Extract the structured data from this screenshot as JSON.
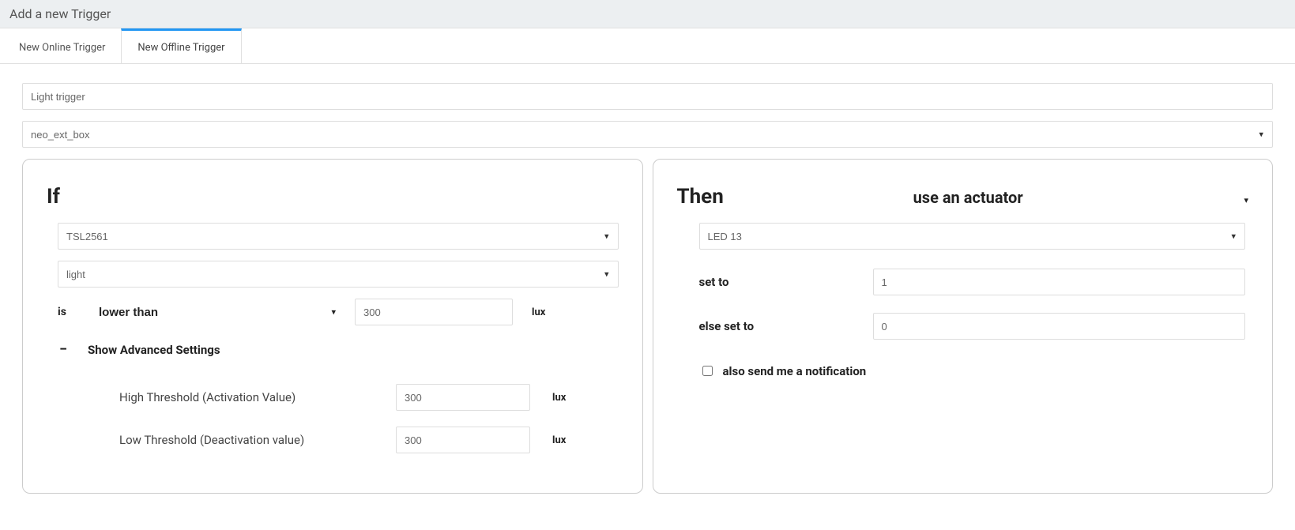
{
  "header": {
    "title": "Add a new Trigger"
  },
  "tabs": {
    "online": "New Online Trigger",
    "offline": "New Offline Trigger",
    "active": "offline"
  },
  "form": {
    "name_value": "Light trigger",
    "device_value": "neo_ext_box"
  },
  "if_panel": {
    "title": "If",
    "sensor_value": "TSL2561",
    "measure_value": "light",
    "is_label": "is",
    "operator_value": "lower than",
    "threshold_value": "300",
    "unit": "lux",
    "adv_toggle": "−",
    "adv_label": "Show Advanced Settings",
    "high_label": "High Threshold (Activation Value)",
    "high_value": "300",
    "low_label": "Low Threshold (Deactivation value)",
    "low_value": "300"
  },
  "then_panel": {
    "title": "Then",
    "subtitle": "use an actuator",
    "actuator_value": "LED 13",
    "set_to_label": "set to",
    "set_to_value": "1",
    "else_label": "else set to",
    "else_value": "0",
    "notif_label": "also send me a notification"
  }
}
